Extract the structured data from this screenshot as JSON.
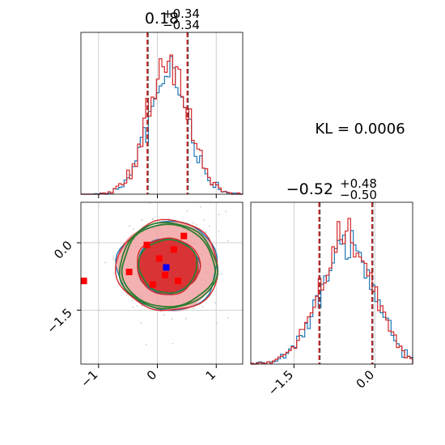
{
  "kl_annotation": "KL = 0.0006",
  "colors": {
    "series_a": "#d62728",
    "series_b": "#1f77b4",
    "contour_c": "#2e7d32",
    "truth": "#0000ff",
    "samples": "#ff0000"
  },
  "chart_data": [
    {
      "type": "histogram",
      "panel": "top-left",
      "title": {
        "value": "0.18",
        "sup": "+0.34",
        "sub": "−0.34"
      },
      "xlim": [
        -1.3,
        1.45
      ],
      "quantile_lines": [
        -0.16,
        0.18,
        0.52
      ],
      "grid": true,
      "xticks": [
        -1,
        0,
        1
      ]
    },
    {
      "type": "histogram",
      "panel": "bottom-right",
      "title": {
        "value": "−0.52",
        "sup": "+0.48",
        "sub": "−0.50"
      },
      "xlim": [
        -2.3,
        0.7
      ],
      "quantile_lines": [
        -1.02,
        -0.52,
        -0.04
      ],
      "grid": true,
      "xtick_labels": [
        "−1.5",
        "0.0"
      ],
      "xticks": [
        -1.5,
        0.0
      ]
    },
    {
      "type": "scatter",
      "panel": "bottom-left",
      "xlim": [
        -1.3,
        1.45
      ],
      "ylim": [
        -2.7,
        0.9
      ],
      "xtick_labels": [
        "−1",
        "0",
        "1"
      ],
      "xticks": [
        -1,
        0,
        1
      ],
      "ytick_labels": [
        "0.0",
        "−1.5"
      ],
      "yticks": [
        0.0,
        -1.5
      ],
      "grid": true,
      "truth_point": {
        "x": 0.15,
        "y": -0.55
      },
      "sample_points": [
        {
          "x": -1.25,
          "y": -0.85
        },
        {
          "x": -0.48,
          "y": -0.65
        },
        {
          "x": -0.18,
          "y": -0.05
        },
        {
          "x": 0.03,
          "y": -0.35
        },
        {
          "x": 0.28,
          "y": -0.15
        },
        {
          "x": 0.45,
          "y": 0.15
        },
        {
          "x": 0.13,
          "y": -0.72
        },
        {
          "x": -0.08,
          "y": -0.93
        },
        {
          "x": 0.35,
          "y": -0.85
        }
      ]
    }
  ]
}
